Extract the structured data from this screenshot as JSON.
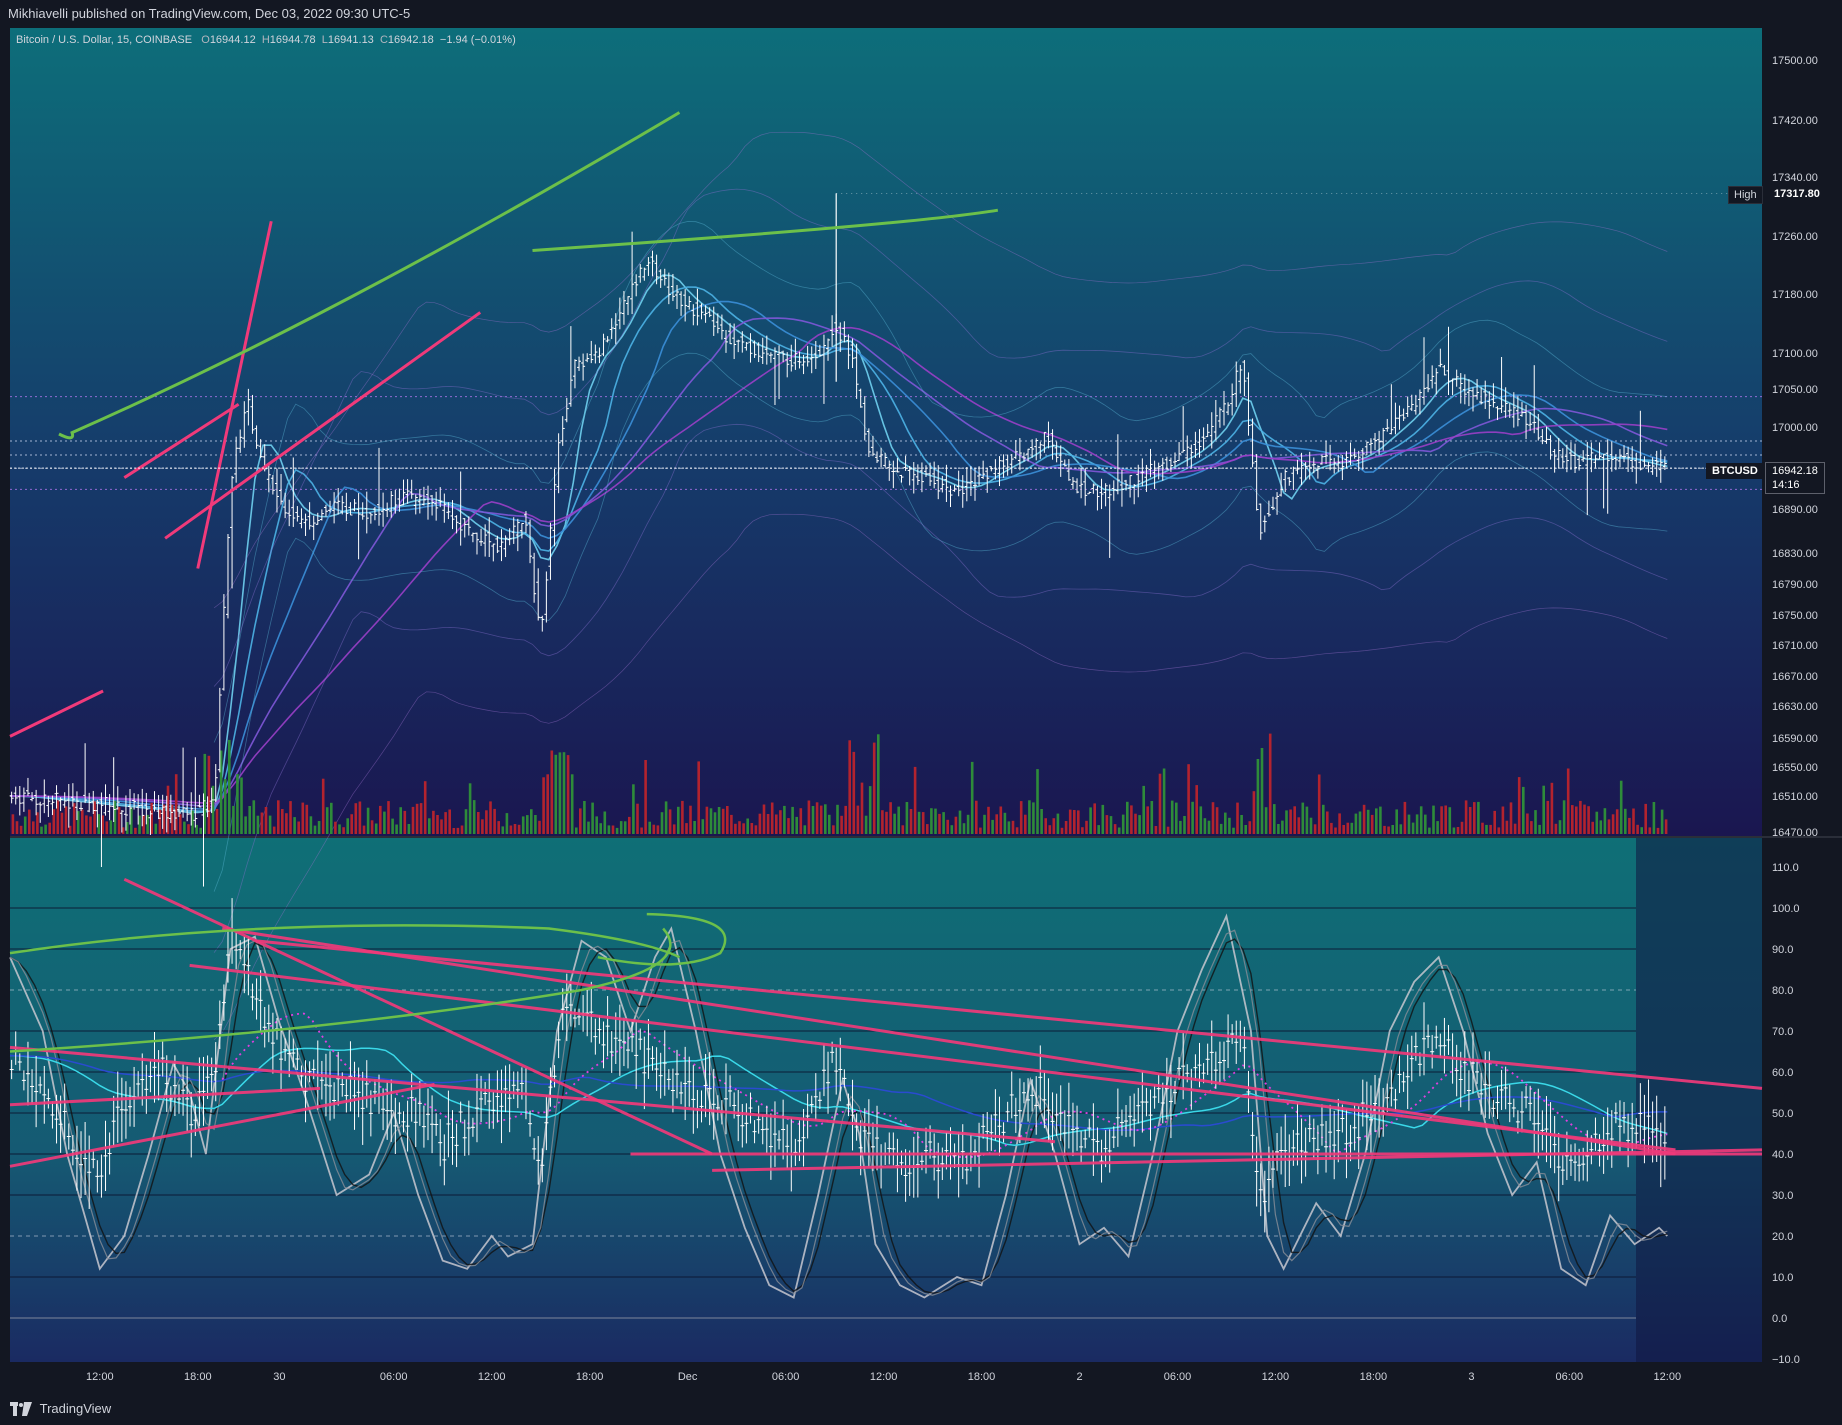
{
  "header": {
    "published": "Mikhiavelli published on TradingView.com, Dec 03, 2022 09:30 UTC-5"
  },
  "legend": {
    "symbol": "Bitcoin / U.S. Dollar, 15, COINBASE",
    "o_key": "O",
    "o": "16944.12",
    "h_key": "H",
    "h": "16944.78",
    "l_key": "L",
    "l": "16941.13",
    "c_key": "C",
    "c": "16942.18",
    "chg": "−1.94 (−0.01%)"
  },
  "labels": {
    "high_label": "High",
    "high_value": "17317.80",
    "symbol_tag": "BTCUSD",
    "last_price": "16942.18",
    "countdown": "14:16"
  },
  "footer": {
    "brand": "TradingView"
  },
  "colors": {
    "bg_top": "#0d6e7a",
    "bg_bottom": "#16184a",
    "ribbon_blue": "#3b9fd8",
    "ribbon_purple": "#8a3fc8",
    "candle": "#ffffff",
    "vol_up": "#2e8b3a",
    "vol_down": "#b3232e",
    "trend_pink": "#f03a7a",
    "trend_green": "#6cc04a"
  },
  "chart_data": [
    {
      "type": "candlestick",
      "title": "Bitcoin / U.S. Dollar, 15, COINBASE",
      "y_ticks": [
        16470,
        16510,
        16550,
        16590,
        16630,
        16670,
        16710,
        16750,
        16790,
        16830,
        16890,
        16950,
        17000,
        17050,
        17100,
        17180,
        17260,
        17340,
        17420,
        17500
      ],
      "y_tick_labels": [
        "16470.00",
        "16510.00",
        "16550.00",
        "16590.00",
        "16630.00",
        "16670.00",
        "16710.00",
        "16750.00",
        "16790.00",
        "16830.00",
        "16890.00",
        "16950.00",
        "17000.00",
        "17050.00",
        "17100.00",
        "17180.00",
        "17260.00",
        "17340.00",
        "17420.00",
        "17500.00"
      ],
      "x_ticks": [
        "12:00",
        "18:00",
        "30",
        "06:00",
        "12:00",
        "18:00",
        "Dec",
        "06:00",
        "12:00",
        "18:00",
        "2",
        "06:00",
        "12:00",
        "18:00",
        "3",
        "06:00",
        "12:00"
      ],
      "x_tick_pos": [
        0.5,
        6.5,
        11.5,
        18.5,
        24.5,
        30.5,
        36.5,
        42.5,
        48.5,
        54.5,
        60.5,
        66.5,
        72.5,
        78.5,
        84.5,
        90.5,
        96.5
      ],
      "x_range": [
        -5,
        102.3
      ],
      "price_path": [
        [
          -5,
          16510
        ],
        [
          0.5,
          16500
        ],
        [
          6,
          16490
        ],
        [
          7.5,
          16500
        ],
        [
          8.5,
          16920
        ],
        [
          9.5,
          17040
        ],
        [
          10.5,
          16940
        ],
        [
          11.5,
          16900
        ],
        [
          13,
          16870
        ],
        [
          15,
          16895
        ],
        [
          17,
          16885
        ],
        [
          19,
          16905
        ],
        [
          21,
          16900
        ],
        [
          23,
          16860
        ],
        [
          25,
          16840
        ],
        [
          26.5,
          16880
        ],
        [
          27.5,
          16720
        ],
        [
          28.5,
          16960
        ],
        [
          29.5,
          17080
        ],
        [
          31,
          17100
        ],
        [
          32.5,
          17160
        ],
        [
          34,
          17230
        ],
        [
          35.5,
          17180
        ],
        [
          37.5,
          17150
        ],
        [
          39,
          17120
        ],
        [
          41,
          17100
        ],
        [
          43,
          17090
        ],
        [
          44.5,
          17100
        ],
        [
          45.5,
          17140
        ],
        [
          46.5,
          17100
        ],
        [
          47.5,
          16970
        ],
        [
          49,
          16940
        ],
        [
          51,
          16930
        ],
        [
          53,
          16910
        ],
        [
          55,
          16940
        ],
        [
          57,
          16960
        ],
        [
          58.5,
          16990
        ],
        [
          60,
          16920
        ],
        [
          62,
          16910
        ],
        [
          64,
          16930
        ],
        [
          66,
          16950
        ],
        [
          68,
          16980
        ],
        [
          69.5,
          17030
        ],
        [
          70.5,
          17090
        ],
        [
          71.5,
          16860
        ],
        [
          73,
          16930
        ],
        [
          75,
          16950
        ],
        [
          77,
          16950
        ],
        [
          79,
          16990
        ],
        [
          81,
          17030
        ],
        [
          82.5,
          17080
        ],
        [
          84,
          17050
        ],
        [
          86,
          17030
        ],
        [
          88,
          17010
        ],
        [
          89.5,
          16960
        ],
        [
          91,
          16950
        ],
        [
          93,
          16960
        ],
        [
          95,
          16945
        ],
        [
          96.5,
          16942
        ]
      ],
      "high_line": 17317.8,
      "last_price": 16942.18,
      "dotted_levels": [
        17040,
        16980,
        16960,
        16942,
        16915
      ]
    },
    {
      "type": "line",
      "title": "",
      "y_ticks": [
        -10,
        0,
        10,
        20,
        30,
        40,
        50,
        60,
        70,
        80,
        90,
        100,
        110
      ],
      "y_tick_labels": [
        "−10.0",
        "0.0",
        "10.0",
        "20.0",
        "30.0",
        "40.0",
        "50.0",
        "60.0",
        "70.0",
        "80.0",
        "90.0",
        "100.0",
        "110.0"
      ],
      "levels_solid": [
        0,
        10,
        30,
        40,
        50,
        60,
        70,
        90,
        100
      ],
      "levels_dashed": [
        20,
        80
      ],
      "rsi_path": [
        [
          -5,
          64
        ],
        [
          -3,
          58
        ],
        [
          -1,
          43
        ],
        [
          0.5,
          36
        ],
        [
          2,
          54
        ],
        [
          4,
          62
        ],
        [
          6,
          50
        ],
        [
          7.5,
          58
        ],
        [
          8.5,
          93
        ],
        [
          10,
          80
        ],
        [
          12,
          62
        ],
        [
          14,
          57
        ],
        [
          16,
          57
        ],
        [
          18,
          50
        ],
        [
          20,
          50
        ],
        [
          21.5,
          42
        ],
        [
          23,
          48
        ],
        [
          25,
          54
        ],
        [
          26.5,
          55
        ],
        [
          27.5,
          38
        ],
        [
          29,
          78
        ],
        [
          31,
          70
        ],
        [
          33,
          66
        ],
        [
          35,
          60
        ],
        [
          37,
          55
        ],
        [
          39,
          52
        ],
        [
          41,
          46
        ],
        [
          43,
          42
        ],
        [
          44.5,
          54
        ],
        [
          45.5,
          66
        ],
        [
          46.5,
          48
        ],
        [
          48,
          40
        ],
        [
          50,
          38
        ],
        [
          52,
          40
        ],
        [
          54,
          40
        ],
        [
          56,
          50
        ],
        [
          58,
          56
        ],
        [
          60,
          45
        ],
        [
          62,
          42
        ],
        [
          64,
          50
        ],
        [
          66,
          56
        ],
        [
          68,
          60
        ],
        [
          69.5,
          66
        ],
        [
          70.5,
          72
        ],
        [
          71.5,
          30
        ],
        [
          73,
          40
        ],
        [
          75,
          44
        ],
        [
          77,
          46
        ],
        [
          79,
          52
        ],
        [
          81,
          62
        ],
        [
          82.5,
          70
        ],
        [
          84,
          60
        ],
        [
          86,
          54
        ],
        [
          88,
          50
        ],
        [
          89.5,
          40
        ],
        [
          91,
          38
        ],
        [
          93,
          46
        ],
        [
          95,
          48
        ],
        [
          96.5,
          42
        ]
      ],
      "stoch_path": [
        [
          -5,
          88
        ],
        [
          -3,
          70
        ],
        [
          -1.5,
          40
        ],
        [
          0.5,
          12
        ],
        [
          2,
          20
        ],
        [
          3.5,
          40
        ],
        [
          5,
          62
        ],
        [
          6,
          55
        ],
        [
          7,
          40
        ],
        [
          8.5,
          90
        ],
        [
          10,
          93
        ],
        [
          11.5,
          72
        ],
        [
          13,
          55
        ],
        [
          15,
          30
        ],
        [
          17,
          35
        ],
        [
          18.5,
          50
        ],
        [
          20,
          30
        ],
        [
          21.5,
          14
        ],
        [
          23,
          12
        ],
        [
          24.5,
          20
        ],
        [
          25.5,
          15
        ],
        [
          27,
          18
        ],
        [
          28.5,
          70
        ],
        [
          30,
          92
        ],
        [
          31.5,
          88
        ],
        [
          33,
          70
        ],
        [
          34.5,
          88
        ],
        [
          35.5,
          95
        ],
        [
          37,
          70
        ],
        [
          38.5,
          40
        ],
        [
          40,
          22
        ],
        [
          41.5,
          8
        ],
        [
          43,
          5
        ],
        [
          44.5,
          30
        ],
        [
          46,
          58
        ],
        [
          47,
          45
        ],
        [
          48,
          18
        ],
        [
          49.5,
          8
        ],
        [
          51,
          5
        ],
        [
          53,
          10
        ],
        [
          54.5,
          8
        ],
        [
          56,
          30
        ],
        [
          57.5,
          58
        ],
        [
          59,
          40
        ],
        [
          60.5,
          18
        ],
        [
          62,
          22
        ],
        [
          63.5,
          15
        ],
        [
          65,
          40
        ],
        [
          66.5,
          70
        ],
        [
          68,
          85
        ],
        [
          69.5,
          98
        ],
        [
          71,
          70
        ],
        [
          72,
          20
        ],
        [
          73,
          12
        ],
        [
          75,
          28
        ],
        [
          76.5,
          20
        ],
        [
          78,
          40
        ],
        [
          79.5,
          70
        ],
        [
          81,
          82
        ],
        [
          82.5,
          88
        ],
        [
          84,
          70
        ],
        [
          85.5,
          45
        ],
        [
          87,
          30
        ],
        [
          88.5,
          38
        ],
        [
          90,
          12
        ],
        [
          91.5,
          8
        ],
        [
          93,
          25
        ],
        [
          94.5,
          18
        ],
        [
          96,
          22
        ],
        [
          96.5,
          20
        ]
      ]
    }
  ]
}
